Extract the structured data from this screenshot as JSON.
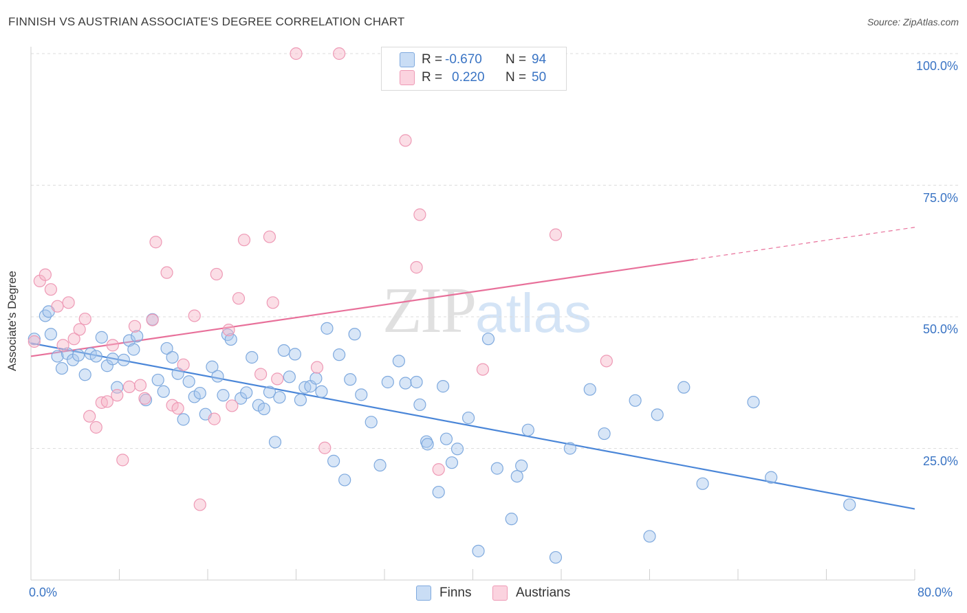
{
  "title": "FINNISH VS AUSTRIAN ASSOCIATE'S DEGREE CORRELATION CHART",
  "source": "Source: ZipAtlas.com",
  "watermark": {
    "zip": "ZIP",
    "atlas": "atlas"
  },
  "legend_top": [
    {
      "r_label": "R =",
      "r_value": "-0.670",
      "n_label": "N =",
      "n_value": "94",
      "color": "#a9c8ee"
    },
    {
      "r_label": "R =",
      "r_value": "0.220",
      "n_label": "N =",
      "n_value": "50",
      "color": "#f6b5c8"
    }
  ],
  "legend_bottom": [
    {
      "label": "Finns",
      "color": "#a9c8ee"
    },
    {
      "label": "Austrians",
      "color": "#f6b5c8"
    }
  ],
  "chart_data": {
    "type": "scatter",
    "title": "FINNISH VS AUSTRIAN ASSOCIATE'S DEGREE CORRELATION CHART",
    "xlabel": "",
    "ylabel": "Associate's Degree",
    "xlim": [
      0,
      80
    ],
    "ylim": [
      0,
      100
    ],
    "x_tick_labels": [
      "0.0%",
      "80.0%"
    ],
    "y_ticks": [
      25,
      50,
      75,
      100
    ],
    "y_tick_labels": [
      "25.0%",
      "50.0%",
      "75.0%",
      "100.0%"
    ],
    "grid": true,
    "legend": "top-center",
    "series": [
      {
        "name": "Finns",
        "color": "#4a86d8",
        "trend": {
          "x0": 0,
          "y0": 45.0,
          "x1": 80,
          "y1": 13.5,
          "solid_until": 80
        },
        "points": [
          [
            0.3,
            45.8
          ],
          [
            1.3,
            50.2
          ],
          [
            1.6,
            51.0
          ],
          [
            1.8,
            46.7
          ],
          [
            2.4,
            42.5
          ],
          [
            2.8,
            40.2
          ],
          [
            3.3,
            43.0
          ],
          [
            3.8,
            41.8
          ],
          [
            4.3,
            42.7
          ],
          [
            4.9,
            39.0
          ],
          [
            5.4,
            43.0
          ],
          [
            5.9,
            42.5
          ],
          [
            6.4,
            46.1
          ],
          [
            6.9,
            40.7
          ],
          [
            7.4,
            42.0
          ],
          [
            7.8,
            36.6
          ],
          [
            8.4,
            41.8
          ],
          [
            8.9,
            45.5
          ],
          [
            9.3,
            43.8
          ],
          [
            9.6,
            46.3
          ],
          [
            10.4,
            34.2
          ],
          [
            11.0,
            49.5
          ],
          [
            11.5,
            38.0
          ],
          [
            12.0,
            35.8
          ],
          [
            12.3,
            44.0
          ],
          [
            12.8,
            42.3
          ],
          [
            13.3,
            39.2
          ],
          [
            13.8,
            30.5
          ],
          [
            14.3,
            37.7
          ],
          [
            14.8,
            34.8
          ],
          [
            15.3,
            35.5
          ],
          [
            15.8,
            31.5
          ],
          [
            16.4,
            40.5
          ],
          [
            16.9,
            38.7
          ],
          [
            17.4,
            35.1
          ],
          [
            17.8,
            46.6
          ],
          [
            18.1,
            45.7
          ],
          [
            19.0,
            34.5
          ],
          [
            19.5,
            35.6
          ],
          [
            20.0,
            42.3
          ],
          [
            20.6,
            33.2
          ],
          [
            21.1,
            32.5
          ],
          [
            21.6,
            35.7
          ],
          [
            22.1,
            26.2
          ],
          [
            22.5,
            34.7
          ],
          [
            22.9,
            43.6
          ],
          [
            23.4,
            38.6
          ],
          [
            23.9,
            42.9
          ],
          [
            24.4,
            34.2
          ],
          [
            24.8,
            36.6
          ],
          [
            25.3,
            36.8
          ],
          [
            25.8,
            38.3
          ],
          [
            26.3,
            35.8
          ],
          [
            26.8,
            47.8
          ],
          [
            27.4,
            22.6
          ],
          [
            27.9,
            42.8
          ],
          [
            28.4,
            19.0
          ],
          [
            28.9,
            38.1
          ],
          [
            29.3,
            46.7
          ],
          [
            29.9,
            35.2
          ],
          [
            30.8,
            30.0
          ],
          [
            31.6,
            21.8
          ],
          [
            32.3,
            37.6
          ],
          [
            33.3,
            41.6
          ],
          [
            33.9,
            37.4
          ],
          [
            34.9,
            37.6
          ],
          [
            35.2,
            33.3
          ],
          [
            35.8,
            26.3
          ],
          [
            35.9,
            25.8
          ],
          [
            36.9,
            16.7
          ],
          [
            37.3,
            36.8
          ],
          [
            37.6,
            26.8
          ],
          [
            38.1,
            22.3
          ],
          [
            38.6,
            24.9
          ],
          [
            39.6,
            30.8
          ],
          [
            40.5,
            5.5
          ],
          [
            41.4,
            45.8
          ],
          [
            42.2,
            21.2
          ],
          [
            43.5,
            11.6
          ],
          [
            44.0,
            19.7
          ],
          [
            44.4,
            21.7
          ],
          [
            45.0,
            28.5
          ],
          [
            48.8,
            25.0
          ],
          [
            50.6,
            36.2
          ],
          [
            51.9,
            27.8
          ],
          [
            54.7,
            34.1
          ],
          [
            56.0,
            8.3
          ],
          [
            56.7,
            31.4
          ],
          [
            59.1,
            36.6
          ],
          [
            60.8,
            18.3
          ],
          [
            65.4,
            33.8
          ],
          [
            67.0,
            19.5
          ],
          [
            74.1,
            14.3
          ],
          [
            47.5,
            4.3
          ]
        ]
      },
      {
        "name": "Austrians",
        "color": "#e8709a",
        "trend": {
          "x0": 0,
          "y0": 42.5,
          "x1": 80,
          "y1": 67.0,
          "solid_until": 60
        },
        "points": [
          [
            0.3,
            45.3
          ],
          [
            0.8,
            56.8
          ],
          [
            1.3,
            58.0
          ],
          [
            1.8,
            55.2
          ],
          [
            2.4,
            52.0
          ],
          [
            2.9,
            44.6
          ],
          [
            3.4,
            52.7
          ],
          [
            3.9,
            45.8
          ],
          [
            4.4,
            47.6
          ],
          [
            4.9,
            49.6
          ],
          [
            5.3,
            31.1
          ],
          [
            5.9,
            29.0
          ],
          [
            6.4,
            33.7
          ],
          [
            6.9,
            33.9
          ],
          [
            7.4,
            44.6
          ],
          [
            7.8,
            35.1
          ],
          [
            8.3,
            22.8
          ],
          [
            8.9,
            36.7
          ],
          [
            9.4,
            48.2
          ],
          [
            9.9,
            37.0
          ],
          [
            10.3,
            34.5
          ],
          [
            11.0,
            49.4
          ],
          [
            11.3,
            64.2
          ],
          [
            12.3,
            58.4
          ],
          [
            12.8,
            33.2
          ],
          [
            13.3,
            32.6
          ],
          [
            13.8,
            40.9
          ],
          [
            14.8,
            50.2
          ],
          [
            15.3,
            14.3
          ],
          [
            16.6,
            30.6
          ],
          [
            16.8,
            58.1
          ],
          [
            17.9,
            47.5
          ],
          [
            18.2,
            33.1
          ],
          [
            18.8,
            53.5
          ],
          [
            19.3,
            64.6
          ],
          [
            20.8,
            39.1
          ],
          [
            21.6,
            65.2
          ],
          [
            21.9,
            52.7
          ],
          [
            22.3,
            38.2
          ],
          [
            24.0,
            100.0
          ],
          [
            25.9,
            40.4
          ],
          [
            26.6,
            25.1
          ],
          [
            27.9,
            100.0
          ],
          [
            33.9,
            83.5
          ],
          [
            34.9,
            59.4
          ],
          [
            35.2,
            69.4
          ],
          [
            36.9,
            21.0
          ],
          [
            40.9,
            40.0
          ],
          [
            47.5,
            65.6
          ],
          [
            52.1,
            41.6
          ]
        ]
      }
    ]
  }
}
